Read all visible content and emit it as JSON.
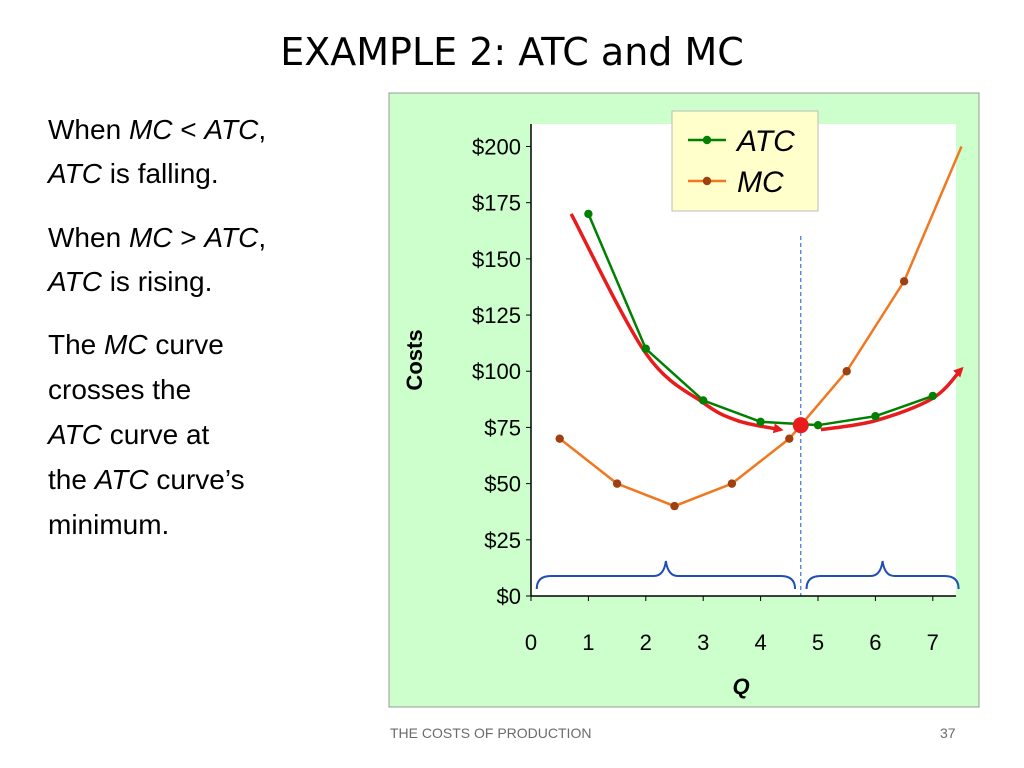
{
  "slide": {
    "title": "EXAMPLE 2:  ATC and MC",
    "footer_left": "THE COSTS OF PRODUCTION",
    "page_number": "37"
  },
  "text_block": {
    "p1": {
      "a": "When ",
      "b": "MC",
      "c": " < ",
      "d": "ATC",
      "e": ","
    },
    "p1b": {
      "a": "ATC",
      "b": " is falling."
    },
    "p2": {
      "a": "When ",
      "b": "MC",
      "c": " > ",
      "d": "ATC",
      "e": ","
    },
    "p2b": {
      "a": "ATC",
      "b": " is rising."
    },
    "p3": {
      "l1a": "The ",
      "l1b": "MC",
      "l1c": " curve",
      "l2": "crosses the",
      "l3a": "ATC",
      "l3b": " curve at",
      "l4a": "the ",
      "l4b": "ATC",
      "l4c": " curve’s",
      "l5": "minimum."
    }
  },
  "colors": {
    "panel_bg": "#ccffcc",
    "plot_bg": "#ffffff",
    "legend_bg": "#ffffcc",
    "atc": "#008000",
    "mc": "#f07820",
    "mc_marker": "#a04010",
    "highlight": "#e81c1c",
    "brace": "#1f4eb4",
    "dashed": "#3a6fd8"
  },
  "chart_data": {
    "type": "line",
    "xlabel": "Q",
    "ylabel": "Costs",
    "xlim": [
      0,
      7.4
    ],
    "ylim": [
      0,
      200
    ],
    "x_ticks": [
      "0",
      "1",
      "2",
      "3",
      "4",
      "5",
      "6",
      "7"
    ],
    "y_ticks": [
      "$0",
      "$25",
      "$50",
      "$75",
      "$100",
      "$125",
      "$150",
      "$175",
      "$200"
    ],
    "legend_position": "top-right",
    "series": [
      {
        "name": "ATC",
        "x": [
          1,
          2,
          3,
          4,
          5,
          6,
          7
        ],
        "values": [
          170,
          110,
          87,
          77.5,
          76,
          80,
          89
        ]
      },
      {
        "name": "MC",
        "x": [
          0.5,
          1.5,
          2.5,
          3.5,
          4.5,
          5.5,
          6.5,
          7.5
        ],
        "values": [
          70,
          50,
          40,
          50,
          70,
          100,
          140,
          200
        ]
      }
    ],
    "annotations": {
      "intersection": {
        "x": 4.7,
        "y": 76
      },
      "falling_arrow": {
        "x": [
          0.7,
          2.0,
          3.0,
          3.6,
          4.35
        ],
        "y": [
          170,
          108,
          86,
          78,
          74
        ]
      },
      "rising_arrow": {
        "x": [
          5.05,
          6.0,
          7.0,
          7.5
        ],
        "y": [
          74,
          78,
          88,
          101
        ]
      },
      "brace_left": {
        "x": [
          0.1,
          4.6
        ]
      },
      "brace_right": {
        "x": [
          4.8,
          7.45
        ]
      }
    }
  }
}
